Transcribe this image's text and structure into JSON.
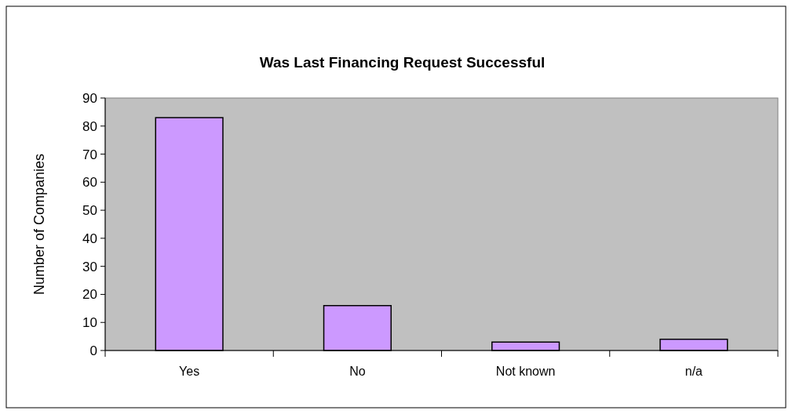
{
  "chart_data": {
    "type": "bar",
    "title": "Was Last Financing Request Successful",
    "ylabel": "Number of Companies",
    "categories": [
      "Yes",
      "No",
      "Not known",
      "n/a"
    ],
    "values": [
      83,
      16,
      3,
      4
    ],
    "color": "#cc99ff",
    "ylim": [
      0,
      90
    ],
    "yticks": [
      0,
      10,
      20,
      30,
      40,
      50,
      60,
      70,
      80,
      90
    ],
    "grid": false
  }
}
